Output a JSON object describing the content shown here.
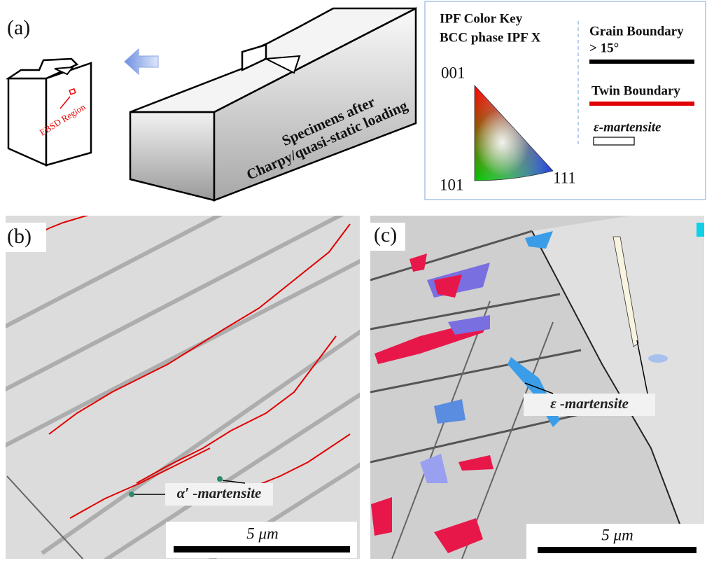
{
  "panel_a": {
    "label": "(a)",
    "ebsd_label": "EBSD Region",
    "specimen_caption": [
      "Specimens after",
      "Charpy/quasi-static loading"
    ]
  },
  "legend": {
    "title": [
      "IPF Color Key",
      "BCC phase IPF X"
    ],
    "ipf_corners": {
      "top": "001",
      "left": "101",
      "right": "111"
    },
    "grain_boundary": [
      "Grain Boundary",
      "> 15°"
    ],
    "twin_boundary": "Twin Boundary",
    "epsilon_martensite": "ε-martensite"
  },
  "panel_b": {
    "label": "(b)",
    "annotation": "α′ -martensite",
    "scale_bar": "5 μm"
  },
  "panel_c": {
    "label": "(c)",
    "annotation": "ε -martensite",
    "scale_bar": "5 μm"
  }
}
